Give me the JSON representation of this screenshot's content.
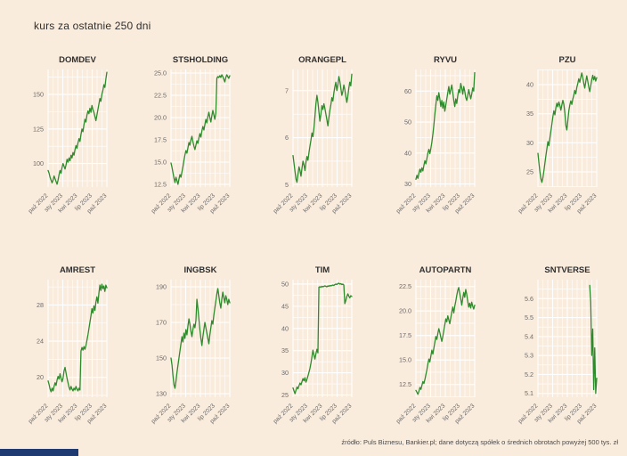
{
  "page": {
    "title": "kurs za ostatnie 250 dni",
    "caption": "źródło: Puls Biznesu, Bankier.pl; dane dotyczą spółek o średnich obrotach powyżej 500 tys. zł"
  },
  "colors": {
    "background": "#faecdd",
    "grid": "#ffffff",
    "line": "#2e8b2c",
    "panel_title": "#2f2f2f",
    "tick_label": "#6a6a6a",
    "caption_text": "#4a4a4a",
    "brand_bar": "#1e3a70"
  },
  "x_tick_labels": [
    "paź 2022",
    "sty 2023",
    "kwi 2023",
    "lip 2023",
    "paź 2023"
  ],
  "chart_data": [
    {
      "type": "line",
      "title": "DOMDEV",
      "y_ticks": [
        100,
        125,
        150
      ],
      "y_tick_labels": [
        "100",
        "125",
        "150"
      ],
      "ylim": [
        83,
        168
      ],
      "values": [
        95,
        93,
        90,
        88,
        86,
        88,
        91,
        89,
        87,
        85,
        88,
        92,
        95,
        93,
        97,
        100,
        98,
        96,
        99,
        103,
        101,
        104,
        102,
        106,
        104,
        108,
        106,
        110,
        113,
        111,
        115,
        118,
        116,
        121,
        125,
        123,
        128,
        132,
        130,
        135,
        138,
        136,
        140,
        137,
        142,
        139,
        137,
        134,
        131,
        135,
        139,
        143,
        147,
        145,
        150,
        153,
        157,
        155,
        161,
        166
      ]
    },
    {
      "type": "line",
      "title": "STSHOLDING",
      "y_ticks": [
        12.5,
        15.0,
        17.5,
        20.0,
        22.5,
        25.0
      ],
      "y_tick_labels": [
        "12.5",
        "15.0",
        "17.5",
        "20.0",
        "22.5",
        "25.0"
      ],
      "ylim": [
        12.2,
        25.4
      ],
      "values": [
        14.9,
        14.4,
        13.8,
        13.2,
        12.7,
        13.3,
        12.9,
        12.5,
        13.1,
        13.6,
        13.3,
        13.9,
        14.5,
        15.2,
        15.8,
        16.3,
        16.0,
        16.6,
        17.2,
        16.9,
        17.5,
        17.9,
        17.3,
        16.8,
        16.4,
        16.9,
        17.4,
        17.1,
        17.7,
        18.2,
        17.8,
        18.5,
        19.0,
        18.6,
        19.2,
        19.8,
        19.4,
        20.1,
        20.6,
        20.0,
        19.5,
        20.2,
        20.8,
        20.3,
        19.8,
        20.5,
        24.4,
        24.6,
        24.5,
        24.7,
        24.5,
        24.8,
        24.6,
        24.3,
        24.0,
        24.5,
        24.8,
        24.6,
        24.4,
        24.7
      ]
    },
    {
      "type": "line",
      "title": "ORANGEPL",
      "y_ticks": [
        5,
        6,
        7
      ],
      "y_tick_labels": [
        "5",
        "6",
        "7"
      ],
      "ylim": [
        4.95,
        7.45
      ],
      "values": [
        5.62,
        5.45,
        5.28,
        5.12,
        5.05,
        5.22,
        5.38,
        5.3,
        5.18,
        5.35,
        5.5,
        5.42,
        5.3,
        5.48,
        5.6,
        5.52,
        5.68,
        5.82,
        5.95,
        6.1,
        6.02,
        6.2,
        6.45,
        6.72,
        6.9,
        6.75,
        6.55,
        6.35,
        6.5,
        6.68,
        6.6,
        6.72,
        6.62,
        6.5,
        6.38,
        6.25,
        6.42,
        6.58,
        6.7,
        6.85,
        6.78,
        6.95,
        7.08,
        7.18,
        7.0,
        7.12,
        7.3,
        7.2,
        7.05,
        6.9,
        6.98,
        7.12,
        7.02,
        6.88,
        6.75,
        6.88,
        7.05,
        7.18,
        7.1,
        7.35
      ]
    },
    {
      "type": "line",
      "title": "RYVU",
      "y_ticks": [
        30,
        40,
        50,
        60
      ],
      "y_tick_labels": [
        "30",
        "40",
        "50",
        "60"
      ],
      "ylim": [
        29,
        67
      ],
      "values": [
        31.5,
        32.8,
        31.8,
        33.5,
        34.8,
        33.8,
        35.2,
        34.2,
        36.0,
        37.5,
        36.5,
        38.2,
        40.0,
        41.2,
        39.8,
        41.5,
        43.5,
        46.0,
        49.0,
        52.5,
        55.5,
        58.5,
        57.0,
        59.5,
        57.5,
        55.0,
        57.0,
        54.5,
        56.5,
        53.5,
        55.5,
        57.5,
        59.5,
        61.5,
        59.0,
        60.5,
        62.0,
        59.5,
        57.0,
        55.0,
        57.5,
        56.0,
        58.5,
        60.5,
        59.5,
        62.5,
        61.0,
        59.0,
        61.5,
        60.0,
        58.0,
        57.0,
        58.5,
        60.5,
        59.0,
        57.5,
        59.0,
        61.0,
        60.0,
        66.0
      ]
    },
    {
      "type": "line",
      "title": "PZU",
      "y_ticks": [
        25,
        30,
        35,
        40
      ],
      "y_tick_labels": [
        "25",
        "30",
        "35",
        "40"
      ],
      "ylim": [
        22.4,
        42.6
      ],
      "values": [
        28.2,
        26.5,
        25.0,
        23.8,
        23.2,
        24.0,
        25.2,
        26.5,
        27.8,
        29.0,
        30.2,
        29.5,
        30.8,
        32.0,
        33.2,
        34.5,
        35.5,
        34.8,
        36.0,
        36.8,
        36.2,
        37.0,
        36.4,
        35.6,
        36.5,
        37.3,
        36.6,
        35.2,
        33.0,
        32.2,
        33.8,
        35.5,
        36.5,
        37.2,
        36.6,
        37.5,
        38.2,
        39.0,
        38.4,
        39.5,
        40.2,
        41.0,
        40.4,
        41.2,
        42.0,
        41.2,
        40.2,
        39.4,
        40.5,
        41.5,
        40.6,
        39.6,
        38.8,
        39.8,
        40.8,
        41.6,
        40.8,
        41.4,
        40.6,
        41.2
      ]
    },
    {
      "type": "line",
      "title": "AMREST",
      "y_ticks": [
        20,
        24,
        28
      ],
      "y_tick_labels": [
        "20",
        "24",
        "28"
      ],
      "ylim": [
        17.8,
        30.8
      ],
      "values": [
        19.6,
        19.2,
        18.7,
        18.4,
        18.8,
        18.5,
        19.0,
        19.4,
        19.1,
        19.7,
        20.1,
        19.8,
        20.4,
        19.9,
        19.5,
        19.9,
        20.7,
        21.1,
        20.5,
        19.9,
        19.4,
        18.9,
        18.6,
        19.0,
        18.7,
        18.5,
        18.8,
        18.6,
        19.0,
        18.7,
        18.5,
        18.8,
        18.6,
        22.9,
        23.3,
        23.0,
        23.4,
        23.1,
        23.5,
        24.1,
        24.7,
        25.4,
        26.1,
        26.8,
        27.6,
        27.1,
        27.9,
        27.4,
        28.3,
        28.9,
        28.2,
        29.3,
        30.2,
        29.6,
        30.3,
        29.8,
        30.1,
        29.5,
        30.2,
        29.9
      ]
    },
    {
      "type": "line",
      "title": "INGBSK",
      "y_ticks": [
        130,
        150,
        170,
        190
      ],
      "y_tick_labels": [
        "130",
        "150",
        "170",
        "190"
      ],
      "ylim": [
        128,
        194
      ],
      "values": [
        150,
        146,
        140,
        135,
        133,
        137,
        142,
        146,
        150,
        154,
        158,
        162,
        159,
        164,
        161,
        166,
        163,
        168,
        172,
        169,
        165,
        162,
        166,
        169,
        167,
        171,
        183,
        178,
        172,
        166,
        161,
        157,
        162,
        166,
        170,
        167,
        164,
        161,
        158,
        163,
        167,
        171,
        169,
        174,
        178,
        182,
        186,
        189,
        185,
        181,
        178,
        183,
        187,
        184,
        181,
        185,
        183,
        180,
        183,
        181
      ]
    },
    {
      "type": "line",
      "title": "TIM",
      "y_ticks": [
        25,
        30,
        35,
        40,
        45,
        50
      ],
      "y_tick_labels": [
        "25",
        "30",
        "35",
        "40",
        "45",
        "50"
      ],
      "ylim": [
        24.5,
        51
      ],
      "values": [
        26.6,
        25.9,
        25.3,
        26.1,
        26.8,
        26.4,
        27.1,
        27.7,
        27.3,
        28.0,
        28.7,
        28.2,
        28.9,
        27.9,
        28.5,
        29.3,
        30.1,
        31.0,
        32.2,
        33.6,
        35.1,
        34.0,
        33.1,
        34.3,
        35.3,
        34.5,
        49.3,
        49.4,
        49.3,
        49.5,
        49.4,
        49.5,
        49.6,
        49.5,
        49.4,
        49.6,
        49.5,
        49.7,
        49.6,
        49.7,
        49.8,
        49.7,
        49.9,
        50.0,
        49.9,
        50.1,
        50.2,
        50.0,
        50.1,
        49.9,
        50.0,
        49.8,
        45.6,
        46.3,
        47.2,
        47.8,
        47.3,
        46.9,
        47.4,
        47.2
      ]
    },
    {
      "type": "line",
      "title": "AUTOPARTN",
      "y_ticks": [
        12.5,
        15.0,
        17.5,
        20.0,
        22.5
      ],
      "y_tick_labels": [
        "12.5",
        "15.0",
        "17.5",
        "20.0",
        "22.5"
      ],
      "ylim": [
        11.2,
        23.2
      ],
      "values": [
        11.9,
        11.7,
        11.5,
        11.8,
        12.2,
        12.0,
        12.4,
        12.8,
        12.6,
        13.0,
        13.5,
        14.0,
        14.6,
        15.1,
        14.8,
        15.4,
        16.0,
        15.6,
        16.2,
        16.8,
        17.4,
        17.1,
        17.7,
        18.2,
        17.8,
        17.3,
        16.9,
        17.4,
        18.0,
        18.6,
        19.2,
        18.9,
        19.5,
        19.1,
        18.7,
        19.3,
        19.9,
        20.4,
        19.8,
        20.5,
        21.0,
        21.6,
        22.1,
        22.4,
        21.8,
        21.2,
        20.6,
        21.3,
        21.9,
        21.4,
        22.2,
        21.7,
        21.0,
        20.4,
        20.8,
        20.3,
        20.9,
        20.5,
        20.2,
        20.6
      ]
    },
    {
      "type": "line",
      "title": "SNTVERSE",
      "y_ticks": [
        5.1,
        5.2,
        5.3,
        5.4,
        5.5,
        5.6
      ],
      "y_tick_labels": [
        "5.1",
        "5.2",
        "5.3",
        "5.4",
        "5.5",
        "5.6"
      ],
      "ylim": [
        5.08,
        5.7
      ],
      "values": [
        null,
        null,
        null,
        null,
        null,
        null,
        null,
        null,
        null,
        null,
        null,
        null,
        null,
        null,
        null,
        null,
        null,
        null,
        null,
        null,
        null,
        null,
        null,
        null,
        null,
        null,
        null,
        null,
        null,
        null,
        null,
        null,
        null,
        null,
        null,
        null,
        null,
        null,
        null,
        null,
        null,
        null,
        null,
        null,
        null,
        null,
        null,
        null,
        null,
        null,
        null,
        null,
        5.67,
        5.58,
        5.3,
        5.44,
        5.12,
        5.34,
        5.1,
        5.18
      ]
    }
  ]
}
